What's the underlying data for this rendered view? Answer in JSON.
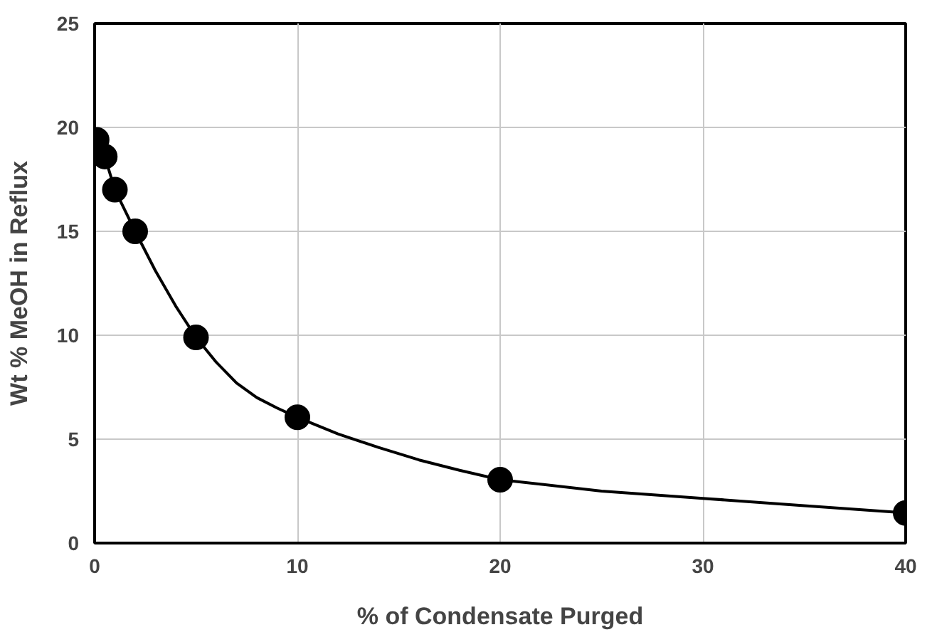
{
  "chart_data": {
    "type": "scatter",
    "xlabel": "% of Condensate Purged",
    "ylabel": "Wt % MeOH in Reflux",
    "x": [
      0.1,
      0.5,
      1,
      2,
      5,
      10,
      20,
      40
    ],
    "series": [
      {
        "color": "#000000",
        "marker": "circle",
        "values": [
          19.4,
          18.6,
          17.0,
          15.0,
          9.9,
          6.05,
          3.05,
          1.45
        ]
      },
      {
        "type": "line",
        "marker": "none",
        "color": "#000000",
        "x": [
          0.1,
          0.5,
          1,
          1.5,
          2,
          3,
          4,
          5,
          6,
          7,
          8,
          9,
          10,
          12,
          14,
          16,
          18,
          20,
          25,
          30,
          35,
          40
        ],
        "values": [
          19.4,
          18.6,
          17.0,
          16.0,
          15.0,
          13.1,
          11.4,
          9.9,
          8.7,
          7.7,
          7.0,
          6.5,
          6.05,
          5.25,
          4.6,
          4.0,
          3.5,
          3.05,
          2.5,
          2.15,
          1.8,
          1.45
        ]
      }
    ],
    "xlim": [
      0,
      40
    ],
    "xticks": [
      0,
      10,
      20,
      30,
      40
    ],
    "ylim": [
      0,
      25
    ],
    "yticks": [
      0,
      5,
      10,
      15,
      20,
      25
    ],
    "grid": true,
    "line_style": "solid"
  }
}
